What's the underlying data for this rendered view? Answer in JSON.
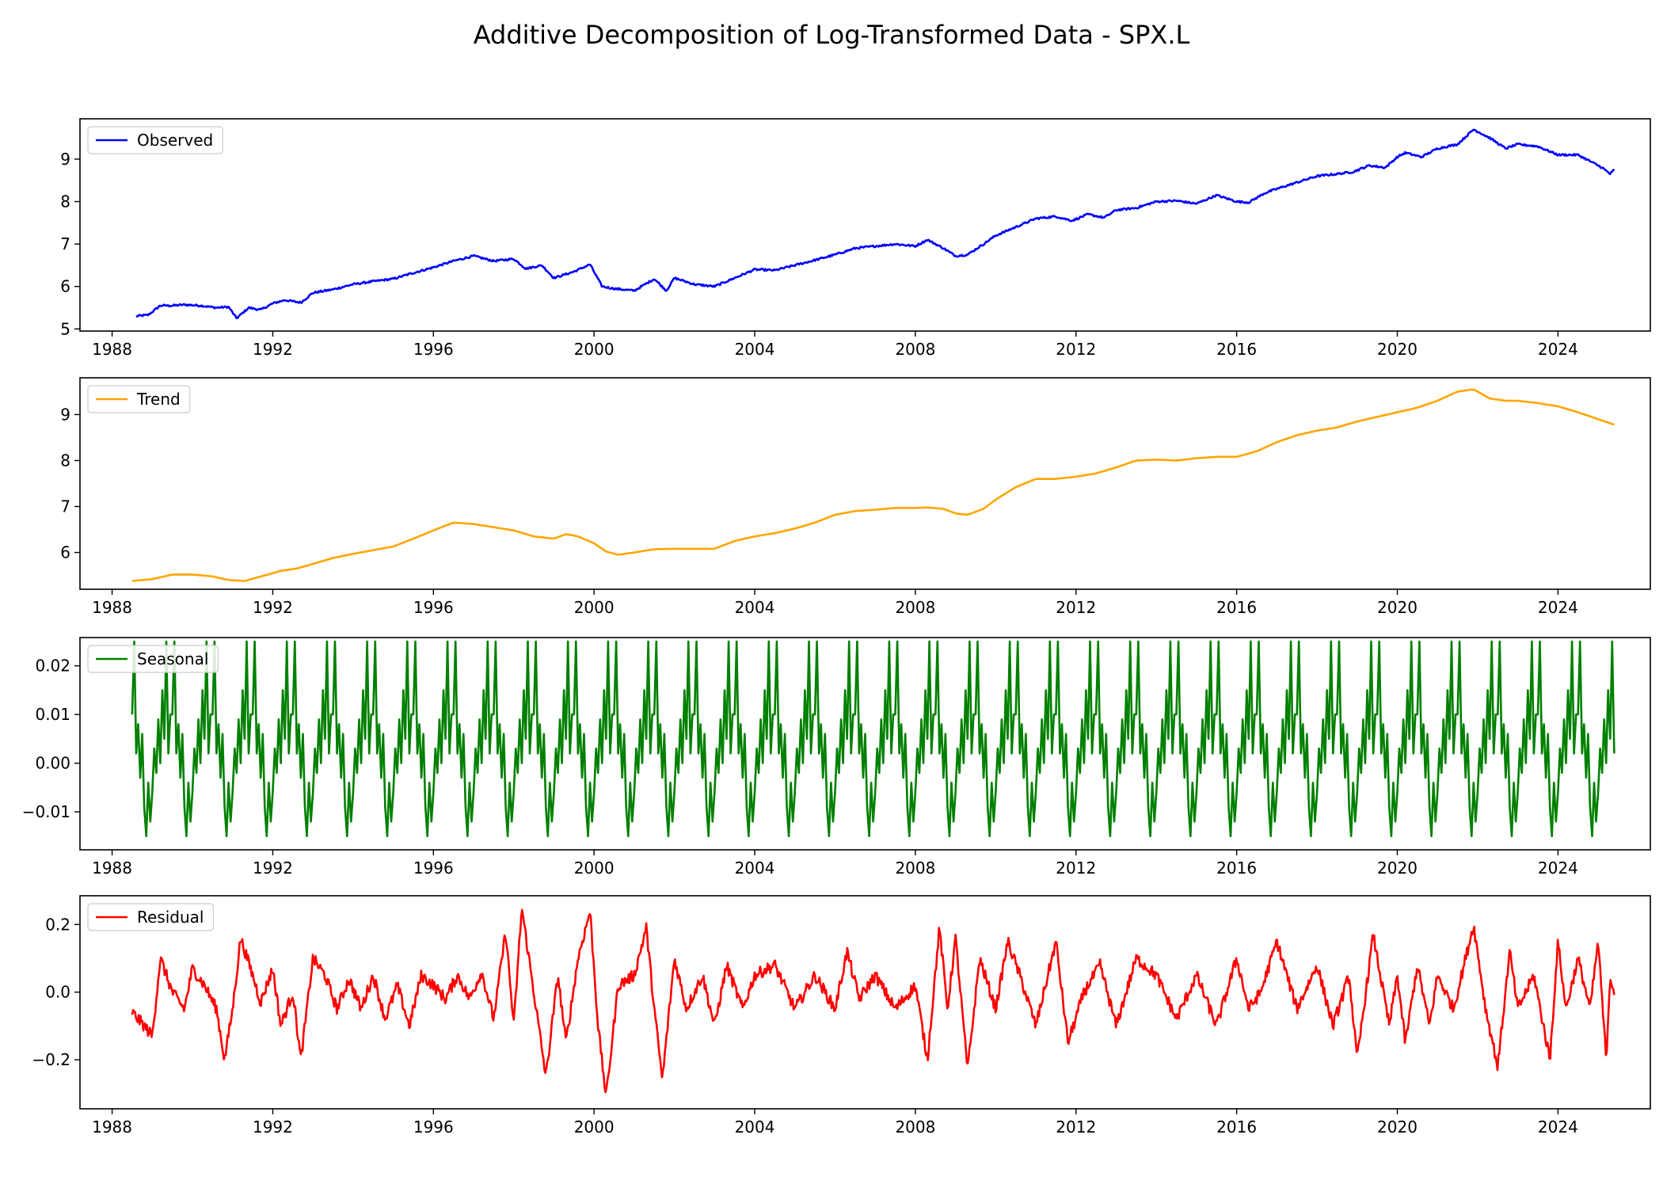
{
  "figure": {
    "title": "Additive Decomposition of Log-Transformed Data - SPX.L"
  },
  "chart_data": [
    {
      "type": "line",
      "panel": "observed",
      "title": "",
      "xlabel": "",
      "ylabel": "",
      "color": "#0000ff",
      "legend_placement": "top-left",
      "grid": false,
      "xlim": [
        1987.2,
        2026.3
      ],
      "ylim": [
        4.95,
        9.95
      ],
      "xticks": [
        1988,
        1992,
        1996,
        2000,
        2004,
        2008,
        2012,
        2016,
        2020,
        2024
      ],
      "xtick_labels": [
        "1988",
        "1992",
        "1996",
        "2000",
        "2004",
        "2008",
        "2012",
        "2016",
        "2020",
        "2024"
      ],
      "yticks": [
        5,
        6,
        7,
        8,
        9
      ],
      "ytick_labels": [
        "5",
        "6",
        "7",
        "8",
        "9"
      ],
      "series": [
        {
          "name": "Observed",
          "x": [
            1988.6,
            1988.9,
            1989.2,
            1989.5,
            1989.8,
            1990.2,
            1990.6,
            1990.9,
            1991.1,
            1991.4,
            1991.7,
            1992.0,
            1992.3,
            1992.7,
            1993.0,
            1993.5,
            1994.0,
            1994.5,
            1995.0,
            1995.5,
            1996.0,
            1996.5,
            1997.0,
            1997.5,
            1998.0,
            1998.3,
            1998.7,
            1999.0,
            1999.5,
            1999.9,
            2000.2,
            2000.5,
            2001.0,
            2001.5,
            2001.8,
            2002.0,
            2002.5,
            2003.0,
            2003.5,
            2004.0,
            2004.5,
            2005.0,
            2005.5,
            2006.0,
            2006.5,
            2007.0,
            2007.5,
            2008.0,
            2008.3,
            2008.7,
            2009.0,
            2009.3,
            2009.7,
            2010.0,
            2010.5,
            2011.0,
            2011.5,
            2011.9,
            2012.3,
            2012.7,
            2013.0,
            2013.5,
            2014.0,
            2014.5,
            2015.0,
            2015.5,
            2016.0,
            2016.3,
            2016.7,
            2017.0,
            2017.5,
            2018.0,
            2018.5,
            2018.9,
            2019.3,
            2019.7,
            2020.0,
            2020.2,
            2020.6,
            2021.0,
            2021.5,
            2021.9,
            2022.3,
            2022.7,
            2023.0,
            2023.5,
            2024.0,
            2024.5,
            2024.8,
            2025.1,
            2025.3,
            2025.4
          ],
          "y": [
            5.3,
            5.33,
            5.55,
            5.55,
            5.57,
            5.55,
            5.5,
            5.52,
            5.25,
            5.5,
            5.45,
            5.6,
            5.68,
            5.62,
            5.85,
            5.93,
            6.05,
            6.12,
            6.18,
            6.32,
            6.45,
            6.6,
            6.72,
            6.6,
            6.65,
            6.42,
            6.5,
            6.2,
            6.35,
            6.52,
            6.0,
            5.95,
            5.9,
            6.18,
            5.9,
            6.2,
            6.05,
            6.0,
            6.2,
            6.4,
            6.38,
            6.5,
            6.62,
            6.75,
            6.9,
            6.95,
            7.0,
            6.95,
            7.1,
            6.9,
            6.72,
            6.75,
            7.0,
            7.2,
            7.4,
            7.6,
            7.65,
            7.55,
            7.7,
            7.62,
            7.8,
            7.85,
            8.0,
            8.02,
            7.95,
            8.15,
            8.0,
            7.98,
            8.2,
            8.3,
            8.45,
            8.6,
            8.65,
            8.7,
            8.85,
            8.8,
            9.05,
            9.15,
            9.05,
            9.25,
            9.35,
            9.7,
            9.5,
            9.25,
            9.35,
            9.3,
            9.1,
            9.1,
            8.95,
            8.8,
            8.65,
            8.75
          ]
        }
      ]
    },
    {
      "type": "line",
      "panel": "trend",
      "title": "",
      "xlabel": "",
      "ylabel": "",
      "color": "#ffa500",
      "legend_placement": "top-left",
      "grid": false,
      "xlim": [
        1987.2,
        2026.3
      ],
      "ylim": [
        5.2,
        9.8
      ],
      "xticks": [
        1988,
        1992,
        1996,
        2000,
        2004,
        2008,
        2012,
        2016,
        2020,
        2024
      ],
      "xtick_labels": [
        "1988",
        "1992",
        "1996",
        "2000",
        "2004",
        "2008",
        "2012",
        "2016",
        "2020",
        "2024"
      ],
      "yticks": [
        6,
        7,
        8,
        9
      ],
      "ytick_labels": [
        "6",
        "7",
        "8",
        "9"
      ],
      "series": [
        {
          "name": "Trend",
          "x": [
            1988.5,
            1989.0,
            1989.5,
            1990.0,
            1990.5,
            1990.9,
            1991.3,
            1991.8,
            1992.2,
            1992.6,
            1993.0,
            1993.5,
            1994.0,
            1994.5,
            1995.0,
            1995.5,
            1996.0,
            1996.5,
            1997.0,
            1997.5,
            1998.0,
            1998.5,
            1999.0,
            1999.3,
            1999.6,
            2000.0,
            2000.3,
            2000.6,
            2001.0,
            2001.5,
            2002.0,
            2002.5,
            2003.0,
            2003.5,
            2004.0,
            2004.5,
            2005.0,
            2005.5,
            2006.0,
            2006.5,
            2007.0,
            2007.5,
            2008.0,
            2008.3,
            2008.7,
            2009.0,
            2009.3,
            2009.7,
            2010.0,
            2010.5,
            2011.0,
            2011.5,
            2012.0,
            2012.5,
            2013.0,
            2013.5,
            2014.0,
            2014.5,
            2015.0,
            2015.5,
            2016.0,
            2016.5,
            2017.0,
            2017.5,
            2018.0,
            2018.5,
            2019.0,
            2019.5,
            2020.0,
            2020.5,
            2021.0,
            2021.5,
            2021.9,
            2022.3,
            2022.7,
            2023.0,
            2023.5,
            2024.0,
            2024.5,
            2025.0,
            2025.4
          ],
          "y": [
            5.38,
            5.42,
            5.52,
            5.52,
            5.48,
            5.4,
            5.38,
            5.5,
            5.6,
            5.65,
            5.75,
            5.88,
            5.97,
            6.05,
            6.13,
            6.3,
            6.48,
            6.65,
            6.62,
            6.55,
            6.48,
            6.35,
            6.3,
            6.4,
            6.35,
            6.2,
            6.02,
            5.95,
            6.0,
            6.07,
            6.08,
            6.08,
            6.08,
            6.25,
            6.35,
            6.42,
            6.52,
            6.65,
            6.82,
            6.9,
            6.93,
            6.97,
            6.97,
            6.98,
            6.95,
            6.85,
            6.82,
            6.95,
            7.15,
            7.42,
            7.6,
            7.6,
            7.65,
            7.72,
            7.85,
            8.0,
            8.02,
            8.0,
            8.05,
            8.08,
            8.08,
            8.2,
            8.4,
            8.55,
            8.65,
            8.72,
            8.85,
            8.95,
            9.05,
            9.15,
            9.3,
            9.5,
            9.55,
            9.35,
            9.3,
            9.3,
            9.25,
            9.18,
            9.05,
            8.9,
            8.78
          ]
        }
      ]
    },
    {
      "type": "line",
      "panel": "seasonal",
      "title": "",
      "xlabel": "",
      "ylabel": "",
      "color": "#008000",
      "legend_placement": "top-left",
      "grid": false,
      "xlim": [
        1987.2,
        2026.3
      ],
      "ylim": [
        -0.0178,
        0.0258
      ],
      "xticks": [
        1988,
        1992,
        1996,
        2000,
        2004,
        2008,
        2012,
        2016,
        2020,
        2024
      ],
      "xtick_labels": [
        "1988",
        "1992",
        "1996",
        "2000",
        "2004",
        "2008",
        "2012",
        "2016",
        "2020",
        "2024"
      ],
      "yticks": [
        -0.01,
        0.0,
        0.01,
        0.02
      ],
      "ytick_labels": [
        "−0.01",
        "0.00",
        "0.01",
        "0.02"
      ],
      "series": [
        {
          "name": "Seasonal",
          "start": 1988.5,
          "end": 2025.4,
          "period_years": 1.0,
          "phase": [
            0.0,
            0.05,
            0.1,
            0.15,
            0.2,
            0.25,
            0.3,
            0.35,
            0.4,
            0.45,
            0.5,
            0.55,
            0.6,
            0.65,
            0.7,
            0.75,
            0.8,
            0.85,
            0.9,
            0.95
          ],
          "y": [
            0.01,
            0.025,
            0.002,
            0.008,
            -0.003,
            0.006,
            -0.009,
            -0.015,
            -0.004,
            -0.012,
            -0.006,
            0.003,
            -0.002,
            0.009,
            0.0,
            0.015,
            0.005,
            0.025,
            0.002,
            0.01
          ]
        }
      ]
    },
    {
      "type": "line",
      "panel": "residual",
      "title": "",
      "xlabel": "",
      "ylabel": "",
      "color": "#ff0000",
      "legend_placement": "top-left",
      "grid": false,
      "xlim": [
        1987.2,
        2026.3
      ],
      "ylim": [
        -0.345,
        0.285
      ],
      "xticks": [
        1988,
        1992,
        1996,
        2000,
        2004,
        2008,
        2012,
        2016,
        2020,
        2024
      ],
      "xtick_labels": [
        "1988",
        "1992",
        "1996",
        "2000",
        "2004",
        "2008",
        "2012",
        "2016",
        "2020",
        "2024"
      ],
      "yticks": [
        -0.2,
        0.0,
        0.2
      ],
      "ytick_labels": [
        "−0.2",
        "0.0",
        "0.2"
      ],
      "series": [
        {
          "name": "Residual",
          "x": [
            1988.5,
            1988.8,
            1989.0,
            1989.2,
            1989.5,
            1989.8,
            1990.0,
            1990.3,
            1990.6,
            1990.8,
            1991.0,
            1991.2,
            1991.5,
            1991.7,
            1992.0,
            1992.2,
            1992.5,
            1992.7,
            1993.0,
            1993.3,
            1993.6,
            1993.9,
            1994.2,
            1994.5,
            1994.8,
            1995.1,
            1995.4,
            1995.7,
            1996.0,
            1996.3,
            1996.6,
            1996.9,
            1997.2,
            1997.5,
            1997.8,
            1998.0,
            1998.2,
            1998.5,
            1998.8,
            1999.1,
            1999.3,
            1999.6,
            1999.9,
            2000.1,
            2000.3,
            2000.6,
            2001.0,
            2001.3,
            2001.5,
            2001.7,
            2002.0,
            2002.3,
            2002.7,
            2003.0,
            2003.3,
            2003.7,
            2004.0,
            2004.5,
            2005.0,
            2005.5,
            2006.0,
            2006.3,
            2006.6,
            2007.0,
            2007.5,
            2008.0,
            2008.3,
            2008.6,
            2008.8,
            2009.0,
            2009.3,
            2009.6,
            2010.0,
            2010.3,
            2010.6,
            2011.0,
            2011.5,
            2011.8,
            2012.2,
            2012.6,
            2013.0,
            2013.5,
            2014.0,
            2014.5,
            2015.0,
            2015.5,
            2016.0,
            2016.3,
            2016.6,
            2017.0,
            2017.5,
            2018.0,
            2018.4,
            2018.8,
            2019.0,
            2019.4,
            2019.8,
            2020.0,
            2020.2,
            2020.5,
            2020.8,
            2021.0,
            2021.4,
            2021.7,
            2021.9,
            2022.2,
            2022.5,
            2022.8,
            2023.0,
            2023.4,
            2023.8,
            2024.0,
            2024.2,
            2024.5,
            2024.8,
            2025.0,
            2025.2,
            2025.3,
            2025.4
          ],
          "y": [
            -0.06,
            -0.1,
            -0.13,
            0.1,
            0.0,
            -0.05,
            0.07,
            0.02,
            -0.05,
            -0.2,
            -0.05,
            0.16,
            0.05,
            -0.03,
            0.07,
            -0.1,
            0.0,
            -0.2,
            0.1,
            0.05,
            -0.05,
            0.04,
            -0.05,
            0.05,
            -0.08,
            0.02,
            -0.1,
            0.05,
            0.02,
            -0.02,
            0.05,
            -0.02,
            0.06,
            -0.08,
            0.18,
            -0.1,
            0.25,
            0.0,
            -0.25,
            0.05,
            -0.15,
            0.1,
            0.24,
            -0.1,
            -0.31,
            0.02,
            0.05,
            0.19,
            -0.05,
            -0.26,
            0.1,
            -0.05,
            0.05,
            -0.1,
            0.08,
            -0.05,
            0.05,
            0.08,
            -0.05,
            0.05,
            -0.05,
            0.12,
            -0.02,
            0.05,
            -0.05,
            0.02,
            -0.2,
            0.19,
            -0.05,
            0.16,
            -0.23,
            0.1,
            -0.05,
            0.15,
            0.05,
            -0.1,
            0.15,
            -0.15,
            0.0,
            0.08,
            -0.1,
            0.1,
            0.05,
            -0.08,
            0.05,
            -0.1,
            0.1,
            -0.05,
            0.0,
            0.15,
            -0.05,
            0.08,
            -0.1,
            0.05,
            -0.2,
            0.17,
            -0.1,
            0.05,
            -0.15,
            0.08,
            -0.1,
            0.05,
            -0.05,
            0.1,
            0.2,
            -0.05,
            -0.22,
            0.12,
            -0.05,
            0.05,
            -0.2,
            0.15,
            -0.05,
            0.1,
            -0.05,
            0.15,
            -0.2,
            0.05,
            0.0
          ]
        }
      ]
    }
  ]
}
